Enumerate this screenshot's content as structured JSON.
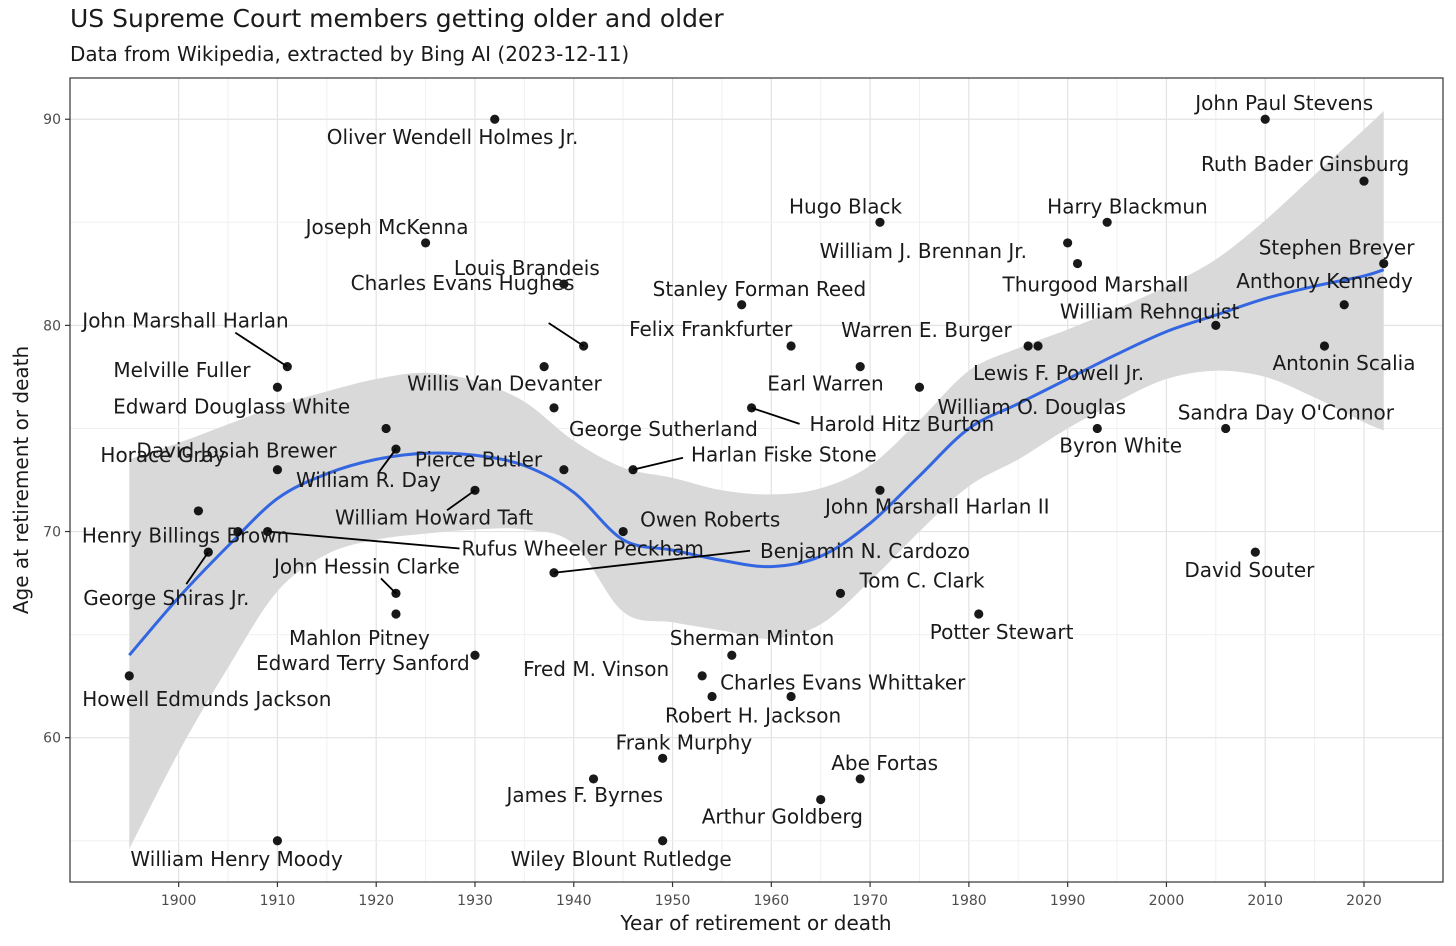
{
  "chart_data": {
    "type": "scatter",
    "title": "US Supreme Court members getting older and older",
    "subtitle": "Data from Wikipedia, extracted by Bing AI (2023-12-11)",
    "xlabel": "Year of retirement or death",
    "ylabel": "Age at retirement or death",
    "xlim": [
      1889,
      2028
    ],
    "ylim": [
      53,
      92
    ],
    "xticks": [
      1900,
      1910,
      1920,
      1930,
      1940,
      1950,
      1960,
      1970,
      1980,
      1990,
      2000,
      2010,
      2020
    ],
    "yticks": [
      60,
      70,
      80,
      90
    ],
    "grid": true,
    "points": [
      {
        "name": "Howell Edmunds Jackson",
        "x": 1895,
        "y": 63
      },
      {
        "name": "George Shiras Jr.",
        "x": 1903,
        "y": 69
      },
      {
        "name": "Horace Gray",
        "x": 1902,
        "y": 71
      },
      {
        "name": "Henry Billings Brown",
        "x": 1906,
        "y": 70
      },
      {
        "name": "Rufus Wheeler Peckham",
        "x": 1909,
        "y": 70
      },
      {
        "name": "David Josiah Brewer",
        "x": 1910,
        "y": 73
      },
      {
        "name": "Melville Fuller",
        "x": 1910,
        "y": 77
      },
      {
        "name": "William Henry Moody",
        "x": 1910,
        "y": 55
      },
      {
        "name": "John Marshall Harlan",
        "x": 1911,
        "y": 78
      },
      {
        "name": "Edward Douglass White",
        "x": 1921,
        "y": 75
      },
      {
        "name": "William R. Day",
        "x": 1922,
        "y": 74
      },
      {
        "name": "John Hessin Clarke",
        "x": 1922,
        "y": 67
      },
      {
        "name": "Mahlon Pitney",
        "x": 1922,
        "y": 66
      },
      {
        "name": "Joseph McKenna",
        "x": 1925,
        "y": 84
      },
      {
        "name": "William Howard Taft",
        "x": 1930,
        "y": 72
      },
      {
        "name": "Edward Terry Sanford",
        "x": 1930,
        "y": 64
      },
      {
        "name": "Oliver Wendell Holmes Jr.",
        "x": 1932,
        "y": 90
      },
      {
        "name": "Willis Van Devanter",
        "x": 1937,
        "y": 78
      },
      {
        "name": "George Sutherland",
        "x": 1938,
        "y": 76
      },
      {
        "name": "Benjamin N. Cardozo",
        "x": 1938,
        "y": 68
      },
      {
        "name": "Louis Brandeis",
        "x": 1939,
        "y": 82
      },
      {
        "name": "Pierce Butler",
        "x": 1939,
        "y": 73
      },
      {
        "name": "Charles Evans Hughes",
        "x": 1941,
        "y": 79
      },
      {
        "name": "James F. Byrnes",
        "x": 1942,
        "y": 58
      },
      {
        "name": "Owen Roberts",
        "x": 1945,
        "y": 70
      },
      {
        "name": "Harlan Fiske Stone",
        "x": 1946,
        "y": 73
      },
      {
        "name": "Frank Murphy",
        "x": 1949,
        "y": 59
      },
      {
        "name": "Wiley Blount Rutledge",
        "x": 1949,
        "y": 55
      },
      {
        "name": "Fred M. Vinson",
        "x": 1953,
        "y": 63
      },
      {
        "name": "Robert H. Jackson",
        "x": 1954,
        "y": 62
      },
      {
        "name": "Sherman Minton",
        "x": 1956,
        "y": 64
      },
      {
        "name": "Stanley Forman Reed",
        "x": 1957,
        "y": 81
      },
      {
        "name": "Harold Hitz Burton",
        "x": 1958,
        "y": 76
      },
      {
        "name": "Felix Frankfurter",
        "x": 1962,
        "y": 79
      },
      {
        "name": "Charles Evans Whittaker",
        "x": 1962,
        "y": 62
      },
      {
        "name": "Arthur Goldberg",
        "x": 1965,
        "y": 57
      },
      {
        "name": "Tom C. Clark",
        "x": 1967,
        "y": 67
      },
      {
        "name": "Earl Warren",
        "x": 1969,
        "y": 78
      },
      {
        "name": "Abe Fortas",
        "x": 1969,
        "y": 58
      },
      {
        "name": "Hugo Black",
        "x": 1971,
        "y": 85
      },
      {
        "name": "John Marshall Harlan II",
        "x": 1971,
        "y": 72
      },
      {
        "name": "William O. Douglas",
        "x": 1975,
        "y": 77
      },
      {
        "name": "Potter Stewart",
        "x": 1981,
        "y": 66
      },
      {
        "name": "Warren E. Burger",
        "x": 1986,
        "y": 79
      },
      {
        "name": "Lewis F. Powell Jr.",
        "x": 1987,
        "y": 79
      },
      {
        "name": "William J. Brennan Jr.",
        "x": 1990,
        "y": 84
      },
      {
        "name": "Thurgood Marshall",
        "x": 1991,
        "y": 83
      },
      {
        "name": "Byron White",
        "x": 1993,
        "y": 75
      },
      {
        "name": "Harry Blackmun",
        "x": 1994,
        "y": 85
      },
      {
        "name": "William Rehnquist",
        "x": 2005,
        "y": 80
      },
      {
        "name": "Sandra Day O'Connor",
        "x": 2006,
        "y": 75
      },
      {
        "name": "David Souter",
        "x": 2009,
        "y": 69
      },
      {
        "name": "John Paul Stevens",
        "x": 2010,
        "y": 90
      },
      {
        "name": "Antonin Scalia",
        "x": 2016,
        "y": 79
      },
      {
        "name": "Anthony Kennedy",
        "x": 2018,
        "y": 81
      },
      {
        "name": "Ruth Bader Ginsburg",
        "x": 2020,
        "y": 87
      },
      {
        "name": "Stephen Breyer",
        "x": 2022,
        "y": 83
      }
    ],
    "smooth": {
      "x": [
        1895,
        1900,
        1905,
        1910,
        1915,
        1920,
        1925,
        1930,
        1935,
        1940,
        1945,
        1950,
        1955,
        1960,
        1965,
        1970,
        1975,
        1980,
        1985,
        1990,
        1995,
        2000,
        2005,
        2010,
        2015,
        2020,
        2022
      ],
      "y": [
        64.0,
        66.8,
        69.3,
        71.6,
        72.8,
        73.5,
        73.8,
        73.7,
        73.2,
        71.9,
        69.6,
        69.1,
        68.6,
        68.3,
        68.8,
        70.4,
        72.7,
        75.0,
        76.2,
        77.4,
        78.6,
        79.7,
        80.5,
        81.3,
        81.9,
        82.4,
        82.7
      ],
      "upper": [
        73.5,
        74.3,
        75.2,
        76.1,
        76.8,
        77.4,
        77.7,
        77.3,
        76.3,
        74.4,
        73.1,
        72.6,
        72.0,
        71.8,
        72.1,
        73.2,
        75.4,
        77.8,
        78.9,
        79.8,
        80.8,
        81.9,
        83.2,
        85.1,
        87.3,
        89.5,
        90.4
      ],
      "lower": [
        54.6,
        59.3,
        63.4,
        67.1,
        68.9,
        69.6,
        69.9,
        70.1,
        70.1,
        69.4,
        66.1,
        65.6,
        65.2,
        64.8,
        65.5,
        67.6,
        70.0,
        72.2,
        73.5,
        75.0,
        76.3,
        77.4,
        77.8,
        77.5,
        76.5,
        75.3,
        74.9
      ],
      "line_color": "#3366e0",
      "band_color": "#d9d9d9"
    }
  }
}
